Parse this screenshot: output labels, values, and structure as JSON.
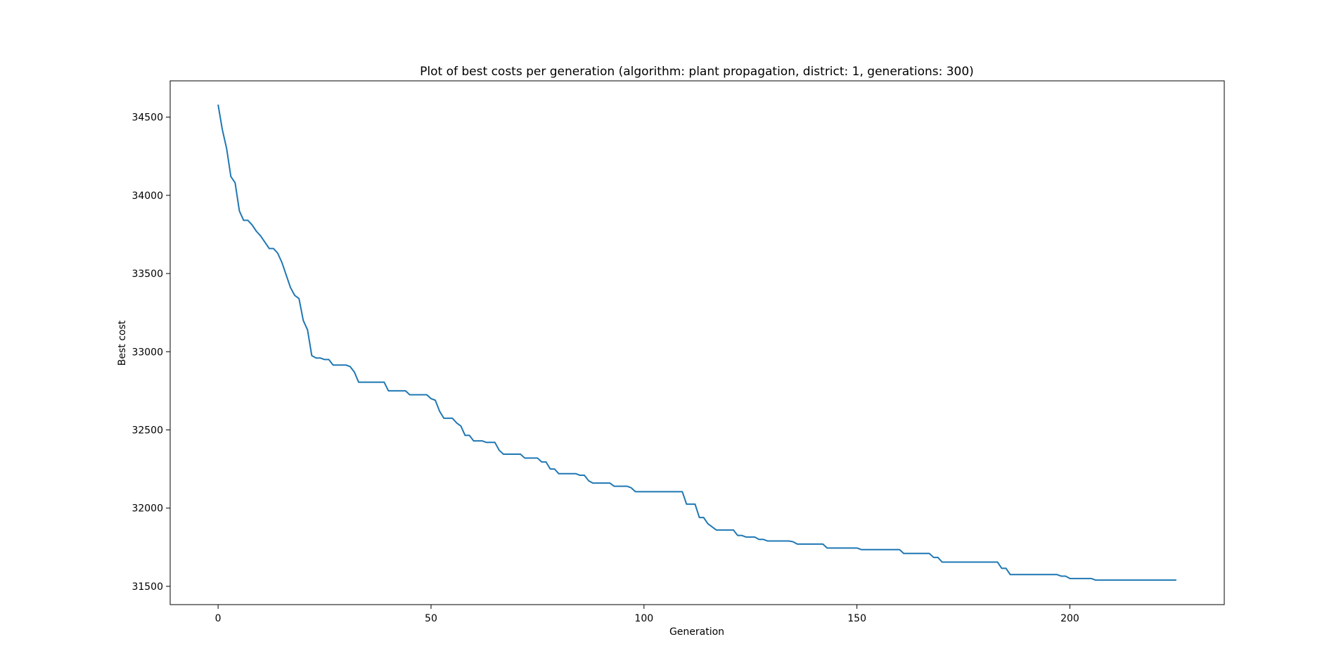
{
  "chart_data": {
    "type": "line",
    "title": "Plot of best costs per generation (algorithm: plant propagation, district: 1, generations: 300)",
    "x_label": "Generation",
    "y_label": "Best cost",
    "color": "#1f77b4",
    "x": [
      0,
      1,
      2,
      3,
      4,
      5,
      6,
      7,
      8,
      9,
      10,
      11,
      12,
      13,
      14,
      15,
      16,
      17,
      18,
      19,
      20,
      21,
      22,
      23,
      24,
      25,
      26,
      27,
      28,
      29,
      30,
      31,
      32,
      33,
      34,
      35,
      36,
      37,
      38,
      39,
      40,
      41,
      42,
      43,
      44,
      45,
      46,
      47,
      48,
      49,
      50,
      51,
      52,
      53,
      54,
      55,
      56,
      57,
      58,
      59,
      60,
      61,
      62,
      63,
      64,
      65,
      66,
      67,
      68,
      69,
      70,
      71,
      72,
      73,
      74,
      75,
      76,
      77,
      78,
      79,
      80,
      81,
      82,
      83,
      84,
      85,
      86,
      87,
      88,
      89,
      90,
      91,
      92,
      93,
      94,
      95,
      96,
      97,
      98,
      99,
      100,
      101,
      102,
      103,
      104,
      105,
      106,
      107,
      108,
      109,
      110,
      111,
      112,
      113,
      114,
      115,
      116,
      117,
      118,
      119,
      120,
      121,
      122,
      123,
      124,
      125,
      126,
      127,
      128,
      129,
      130,
      131,
      132,
      133,
      134,
      135,
      136,
      137,
      138,
      139,
      140,
      141,
      142,
      143,
      144,
      145,
      146,
      147,
      148,
      149,
      150,
      151,
      152,
      153,
      154,
      155,
      156,
      157,
      158,
      159,
      160,
      161,
      162,
      163,
      164,
      165,
      166,
      167,
      168,
      169,
      170,
      171,
      172,
      173,
      174,
      175,
      176,
      177,
      178,
      179,
      180,
      181,
      182,
      183,
      184,
      185,
      186,
      187,
      188,
      189,
      190,
      191,
      192,
      193,
      194,
      195,
      196,
      197,
      198,
      199,
      200,
      201,
      202,
      203,
      204,
      205,
      206,
      207,
      208,
      209,
      210,
      211,
      212,
      213,
      214,
      215,
      216,
      217,
      218,
      219,
      220,
      221,
      222,
      223,
      224,
      225
    ],
    "values": [
      34580,
      34420,
      34300,
      34120,
      34080,
      33900,
      33840,
      33840,
      33810,
      33770,
      33740,
      33700,
      33660,
      33660,
      33630,
      33570,
      33490,
      33410,
      33360,
      33340,
      33200,
      33140,
      32975,
      32960,
      32960,
      32950,
      32950,
      32915,
      32915,
      32915,
      32915,
      32905,
      32870,
      32805,
      32805,
      32805,
      32805,
      32805,
      32805,
      32805,
      32750,
      32750,
      32750,
      32750,
      32750,
      32725,
      32725,
      32725,
      32725,
      32725,
      32700,
      32690,
      32620,
      32575,
      32575,
      32575,
      32545,
      32525,
      32465,
      32465,
      32430,
      32430,
      32430,
      32420,
      32420,
      32420,
      32370,
      32345,
      32345,
      32345,
      32345,
      32345,
      32320,
      32320,
      32320,
      32320,
      32295,
      32295,
      32250,
      32250,
      32220,
      32220,
      32220,
      32220,
      32220,
      32210,
      32210,
      32175,
      32160,
      32160,
      32160,
      32160,
      32160,
      32140,
      32140,
      32140,
      32140,
      32130,
      32105,
      32105,
      32105,
      32105,
      32105,
      32105,
      32105,
      32105,
      32105,
      32105,
      32105,
      32105,
      32025,
      32025,
      32025,
      31940,
      31940,
      31900,
      31880,
      31860,
      31860,
      31860,
      31860,
      31860,
      31825,
      31825,
      31815,
      31815,
      31815,
      31800,
      31800,
      31790,
      31790,
      31790,
      31790,
      31790,
      31790,
      31785,
      31770,
      31770,
      31770,
      31770,
      31770,
      31770,
      31770,
      31745,
      31745,
      31745,
      31745,
      31745,
      31745,
      31745,
      31745,
      31735,
      31735,
      31735,
      31735,
      31735,
      31735,
      31735,
      31735,
      31735,
      31735,
      31710,
      31710,
      31710,
      31710,
      31710,
      31710,
      31710,
      31685,
      31685,
      31655,
      31655,
      31655,
      31655,
      31655,
      31655,
      31655,
      31655,
      31655,
      31655,
      31655,
      31655,
      31655,
      31655,
      31615,
      31615,
      31575,
      31575,
      31575,
      31575,
      31575,
      31575,
      31575,
      31575,
      31575,
      31575,
      31575,
      31575,
      31565,
      31565,
      31550,
      31550,
      31550,
      31550,
      31550,
      31550,
      31540,
      31540,
      31540,
      31540,
      31540,
      31540,
      31540,
      31540,
      31540,
      31540,
      31540,
      31540,
      31540,
      31540,
      31540,
      31540,
      31540,
      31540,
      31540,
      31540
    ],
    "xlim": [
      -11.25,
      236.25
    ],
    "xticks": [
      0,
      50,
      100,
      150,
      200
    ],
    "ylim": [
      31383,
      34732
    ],
    "yticks": [
      31500,
      32000,
      32500,
      33000,
      33500,
      34000,
      34500
    ]
  }
}
